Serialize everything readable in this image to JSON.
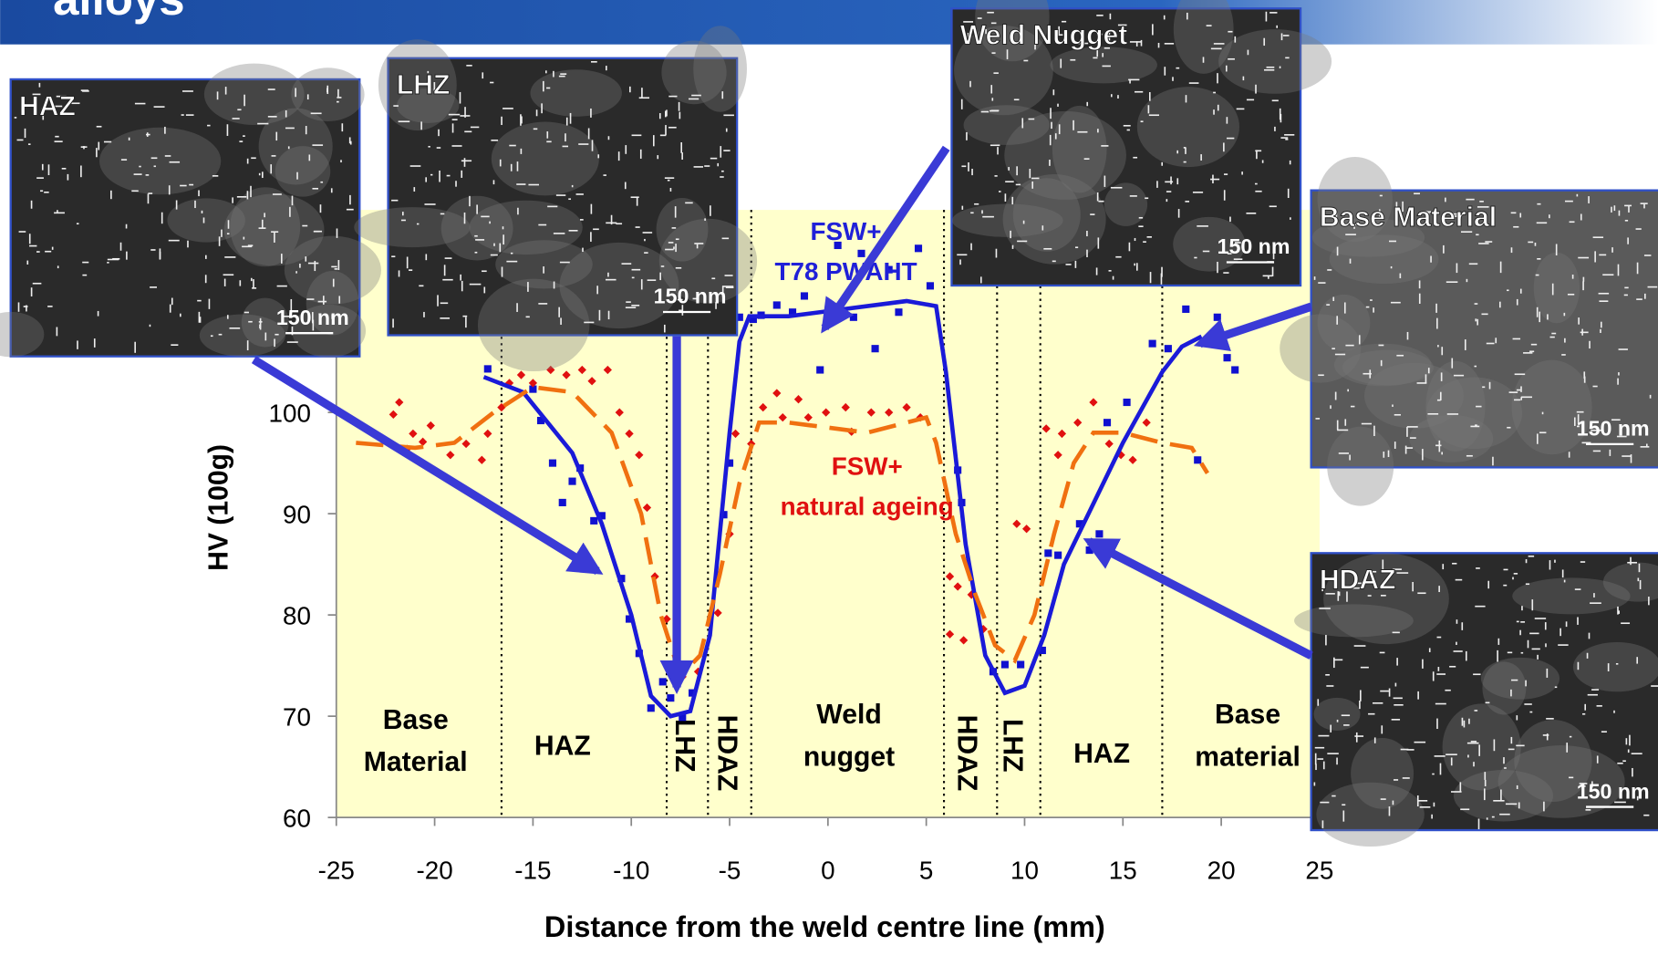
{
  "header": {
    "title": "alloys"
  },
  "micrographs": [
    {
      "label": "HAZ",
      "scale": "150 nm"
    },
    {
      "label": "LHZ",
      "scale": "150 nm"
    },
    {
      "label": "Weld Nugget",
      "scale": "150 nm"
    },
    {
      "label": "Base Material",
      "scale": "150 nm"
    },
    {
      "label": "HDAZ",
      "scale": "150 nm"
    }
  ],
  "chart_data": {
    "type": "scatter",
    "xlabel": "Distance from the weld centre line (mm)",
    "ylabel": "HV (100g)",
    "xlim": [
      -25,
      25
    ],
    "xticks": [
      -25,
      -20,
      -15,
      -10,
      -5,
      0,
      5,
      10,
      15,
      20,
      25
    ],
    "ylim": [
      60,
      120
    ],
    "yticks": [
      60,
      70,
      80,
      90,
      100
    ],
    "background": "#ffffcc",
    "zone_boundaries": [
      -16.6,
      -8.2,
      -6.1,
      -3.9,
      5.9,
      8.6,
      10.8,
      17
    ],
    "zones": [
      [
        "Base",
        "Material"
      ],
      [
        "HAZ"
      ],
      [
        "LHZ"
      ],
      [
        "HDAZ"
      ],
      [
        "Weld",
        "nugget"
      ],
      [
        "HDAZ"
      ],
      [
        "LHZ"
      ],
      [
        "HAZ"
      ],
      [
        "Base",
        "material"
      ]
    ],
    "annotations": [
      {
        "lines": [
          "FSW+",
          "T78 PWAHT"
        ],
        "color": "#2020d8"
      },
      {
        "lines": [
          "FSW+",
          "natural ageing"
        ],
        "color": "#e01010"
      }
    ],
    "series": [
      {
        "type": "scatter",
        "color": "#1010d0",
        "marker": "square",
        "x": [
          -17.3,
          -15,
          -14.6,
          -14,
          -12.6,
          -13,
          -13.5,
          -11.5,
          -11.9,
          -10.5,
          -10.1,
          -9.6,
          -9,
          -8.4,
          -8,
          -7.4,
          -6.9,
          -5.3,
          -5,
          -4.5,
          -3.8,
          -3.4,
          -2.6,
          -1.8,
          -1.2,
          -0.4,
          0.5,
          1.3,
          1.7,
          2.4,
          3.1,
          3.6,
          4.6,
          5.2,
          6.6,
          6.8,
          8.4,
          9,
          9.8,
          10.9,
          11.2,
          11.7,
          12.8,
          13.3,
          13.8,
          14.2,
          15.2,
          16.5,
          17.3,
          18.2,
          19.4,
          19.8,
          20.3,
          20.7,
          18.8
        ],
        "values": [
          104.3,
          102.3,
          99.2,
          95,
          94.5,
          93.2,
          91.1,
          89.8,
          89.3,
          83.6,
          79.6,
          76.2,
          70.8,
          73.4,
          71.8,
          69.9,
          72.3,
          89.9,
          95,
          109.4,
          109.2,
          109.6,
          110.6,
          109.9,
          111.5,
          104.2,
          116.5,
          109.4,
          115.7,
          106.3,
          114.1,
          109.9,
          116.2,
          112.5,
          94.3,
          91.1,
          74.4,
          75.1,
          75.1,
          76.5,
          86.1,
          85.9,
          89,
          86.4,
          88,
          99,
          101,
          106.8,
          106.3,
          110.2,
          106.8,
          109.4,
          105.4,
          104.2,
          95.3
        ]
      },
      {
        "type": "scatter",
        "color": "#e01010",
        "marker": "diamond",
        "x": [
          -21.8,
          -22.1,
          -21.1,
          -20.2,
          -21.4,
          -20.6,
          -19.2,
          -18.4,
          -17.6,
          -17.3,
          -16.6,
          -16.2,
          -15.6,
          -15,
          -14.1,
          -13.3,
          -12.5,
          -12,
          -11.2,
          -10.6,
          -10.1,
          -9.6,
          -9.2,
          -8.8,
          -8.2,
          -7.4,
          -6.6,
          -5.6,
          -5,
          -4.7,
          -3.9,
          -3.3,
          -2.6,
          -2.3,
          -1.5,
          -1,
          -0.1,
          0.9,
          1.2,
          2.2,
          3.1,
          4,
          4.7,
          6.2,
          6.6,
          7.3,
          6.2,
          6.9,
          7.9,
          9.6,
          10.1,
          11.1,
          11.9,
          12.7,
          13.5,
          14.3,
          14.9,
          15.5,
          16.2,
          11.7
        ],
        "values": [
          101,
          99.8,
          97.9,
          98.7,
          96.4,
          97.1,
          95.8,
          96.9,
          95.3,
          97.9,
          100.5,
          102.9,
          103.7,
          102.9,
          104.2,
          103.7,
          104.2,
          103.1,
          104.2,
          100,
          97.9,
          95.8,
          90.6,
          83.8,
          79.6,
          73.9,
          74.4,
          80.2,
          88,
          97.9,
          96.9,
          100.5,
          101.9,
          99.5,
          101.3,
          99.5,
          100,
          100.5,
          98.1,
          100,
          100,
          100.5,
          99.5,
          83.8,
          82.8,
          82,
          78.1,
          77.5,
          78.6,
          89,
          88.5,
          98.4,
          97.9,
          99,
          101,
          96.9,
          95.8,
          95.3,
          99,
          95.8
        ]
      },
      {
        "type": "line",
        "color": "#1a1ad8",
        "dashed": false,
        "x": [
          -17.5,
          -15.5,
          -13,
          -11.5,
          -10,
          -9,
          -8,
          -7,
          -6,
          -5,
          -4.5,
          -4,
          -2,
          0,
          2,
          4,
          5.5,
          6,
          7,
          8,
          9,
          10,
          11,
          12,
          13,
          15,
          17,
          18,
          19
        ],
        "values": [
          103.5,
          102,
          96,
          89,
          80,
          72,
          70,
          70.5,
          78,
          98,
          107,
          109.5,
          109.5,
          110,
          110.5,
          111,
          110.5,
          104,
          87,
          76,
          72.3,
          73,
          78,
          85,
          89,
          97,
          104,
          106.5,
          107.5
        ]
      },
      {
        "type": "line",
        "color": "#f07010",
        "dashed": true,
        "x": [
          -24,
          -21,
          -19,
          -17,
          -15,
          -13,
          -11,
          -9.5,
          -8.5,
          -7.5,
          -6.5,
          -5.5,
          -4.5,
          -3.5,
          -2,
          0,
          2,
          4,
          5,
          5.5,
          6.5,
          7.5,
          8.5,
          9.5,
          10.5,
          11.5,
          12.5,
          13.5,
          15,
          17,
          18.5,
          19.3
        ],
        "values": [
          97,
          96.5,
          97,
          100,
          102.5,
          102,
          98,
          90,
          80,
          74,
          76,
          84,
          93,
          99,
          99,
          98.5,
          98,
          99,
          99.5,
          97,
          88,
          82,
          77,
          75.5,
          80,
          88,
          95,
          98,
          98,
          97,
          96.5,
          94
        ]
      }
    ]
  }
}
